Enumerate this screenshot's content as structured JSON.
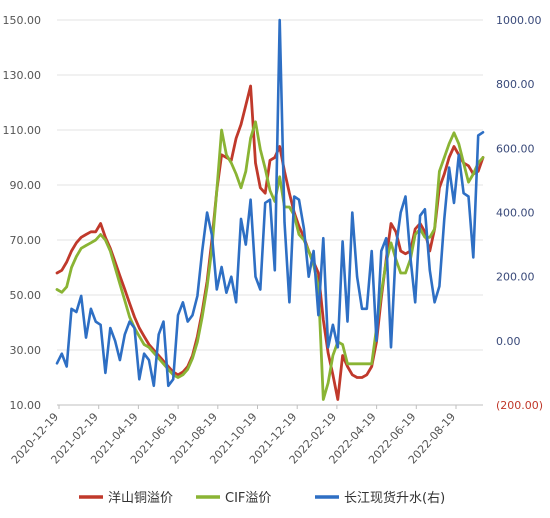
{
  "chart_data": {
    "type": "line",
    "title": "",
    "xlabel": "",
    "ylabel": "",
    "x_ticks": [
      "2020-12-19",
      "2021-02-19",
      "2021-04-19",
      "2021-06-19",
      "2021-08-19",
      "2021-10-19",
      "2021-12-19",
      "2022-02-19",
      "2022-04-19",
      "2022-06-19",
      "2022-08-19"
    ],
    "y_left": {
      "ticks": [
        "10.00",
        "30.00",
        "50.00",
        "70.00",
        "90.00",
        "110.00",
        "130.00",
        "150.00"
      ],
      "min": 10,
      "max": 150
    },
    "y_right": {
      "ticks": [
        "(200.00)",
        "0.00",
        "200.00",
        "400.00",
        "600.00",
        "800.00",
        "1000.00"
      ],
      "min": -200,
      "max": 1000
    },
    "legend": {
      "placement": "bottom"
    },
    "colors": {
      "yangshan": "#c0392b",
      "cif": "#8ab434",
      "changjiang": "#2e6fc4"
    },
    "series": [
      {
        "name": "洋山铜溢价",
        "axis": "left",
        "values": [
          58,
          59,
          62,
          66,
          69,
          71,
          72,
          73,
          73,
          76,
          71,
          67,
          62,
          57,
          52,
          47,
          42,
          38,
          35,
          32,
          30,
          28,
          26,
          24,
          22,
          21,
          22,
          24,
          28,
          35,
          44,
          55,
          70,
          88,
          101,
          100,
          99,
          107,
          112,
          119,
          126,
          98,
          89,
          87,
          99,
          100,
          104,
          95,
          87,
          80,
          75,
          71,
          66,
          62,
          58,
          41,
          29,
          21,
          12,
          28,
          24,
          21,
          20,
          20,
          21,
          24,
          33,
          49,
          63,
          76,
          73,
          66,
          65,
          66,
          74,
          76,
          73,
          66,
          74,
          89,
          94,
          100,
          104,
          101,
          98,
          97,
          94,
          95,
          100
        ]
      },
      {
        "name": "CIF溢价",
        "axis": "left",
        "values": [
          52,
          51,
          53,
          60,
          64,
          67,
          68,
          69,
          70,
          72,
          70,
          66,
          60,
          54,
          48,
          42,
          38,
          35,
          32,
          31,
          29,
          27,
          25,
          23,
          21,
          20,
          21,
          23,
          27,
          33,
          42,
          53,
          67,
          88,
          110,
          101,
          98,
          94,
          89,
          95,
          107,
          113,
          103,
          96,
          88,
          84,
          93,
          82,
          82,
          79,
          72,
          70,
          66,
          61,
          53,
          12,
          18,
          28,
          33,
          32,
          25,
          25,
          25,
          25,
          25,
          25,
          38,
          51,
          62,
          69,
          63,
          58,
          58,
          63,
          72,
          74,
          71,
          71,
          74,
          95,
          100,
          105,
          109,
          105,
          98,
          91,
          94,
          98,
          100
        ]
      },
      {
        "name": "长江现货升水(右)",
        "axis": "right",
        "values": [
          -70,
          -40,
          -80,
          100,
          90,
          140,
          10,
          100,
          60,
          50,
          -100,
          40,
          0,
          -60,
          20,
          60,
          40,
          -120,
          -40,
          -60,
          -140,
          20,
          60,
          -140,
          -120,
          80,
          120,
          60,
          80,
          140,
          280,
          400,
          330,
          160,
          230,
          150,
          200,
          120,
          380,
          300,
          440,
          200,
          160,
          430,
          440,
          220,
          1000,
          370,
          120,
          450,
          440,
          350,
          200,
          280,
          80,
          320,
          -20,
          50,
          -20,
          310,
          60,
          400,
          200,
          100,
          100,
          280,
          0,
          280,
          320,
          -20,
          290,
          400,
          450,
          260,
          120,
          390,
          410,
          220,
          120,
          170,
          380,
          540,
          430,
          580,
          460,
          450,
          260,
          640,
          650
        ]
      }
    ]
  }
}
